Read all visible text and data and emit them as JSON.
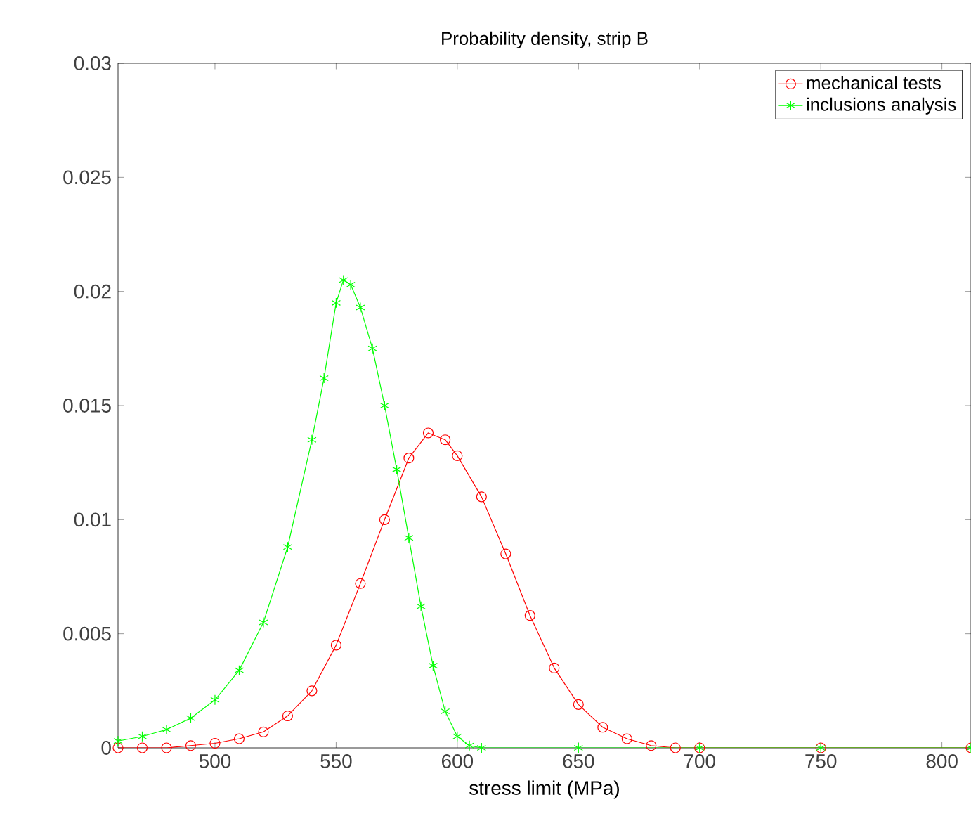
{
  "chart_data": {
    "type": "line",
    "title": "Probability density, strip B",
    "xlabel": "stress limit (MPa)",
    "xlim": [
      460,
      812
    ],
    "ylim": [
      0,
      0.03
    ],
    "xticks": [
      500,
      550,
      600,
      650,
      700,
      750,
      800
    ],
    "yticks": [
      0,
      0.005,
      0.01,
      0.015,
      0.02,
      0.025,
      0.03
    ],
    "legend": "top right",
    "line_style": "solid",
    "series": [
      {
        "name": "mechanical tests",
        "color": "#ff0000",
        "marker": "circle",
        "x": [
          460,
          470,
          480,
          490,
          500,
          510,
          520,
          530,
          540,
          550,
          560,
          570,
          580,
          588,
          595,
          600,
          610,
          620,
          630,
          640,
          650,
          660,
          670,
          680,
          690,
          700,
          750,
          812
        ],
        "values": [
          0,
          0,
          0,
          0.0001,
          0.0002,
          0.0004,
          0.0007,
          0.0014,
          0.0025,
          0.0045,
          0.0072,
          0.01,
          0.0127,
          0.0138,
          0.0135,
          0.0128,
          0.011,
          0.0085,
          0.0058,
          0.0035,
          0.0019,
          0.0009,
          0.0004,
          0.0001,
          0,
          0,
          0,
          0
        ]
      },
      {
        "name": "inclusions analysis",
        "color": "#00ff00",
        "marker": "cross",
        "x": [
          460,
          470,
          480,
          490,
          500,
          510,
          520,
          530,
          540,
          545,
          550,
          553,
          556,
          560,
          565,
          570,
          575,
          580,
          585,
          590,
          595,
          600,
          605,
          610,
          650,
          700,
          750,
          812
        ],
        "values": [
          0.0003,
          0.0005,
          0.0008,
          0.0013,
          0.0021,
          0.0034,
          0.0055,
          0.0088,
          0.0135,
          0.0162,
          0.0195,
          0.0205,
          0.0203,
          0.0193,
          0.0175,
          0.015,
          0.0122,
          0.0092,
          0.0062,
          0.0036,
          0.0016,
          0.0005,
          0.0001,
          0,
          0,
          0,
          0,
          0
        ]
      }
    ]
  }
}
